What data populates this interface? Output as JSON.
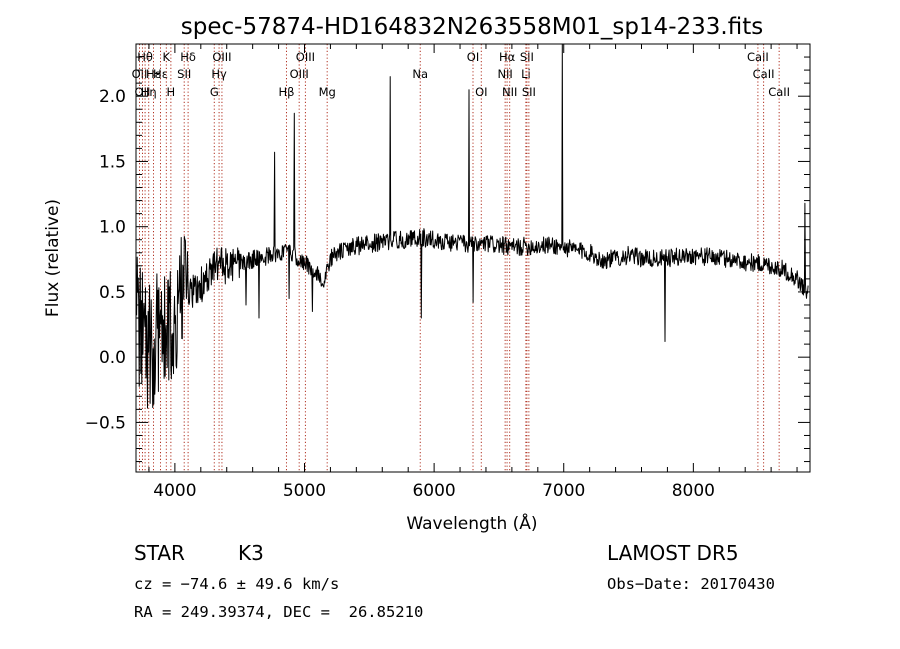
{
  "chart_data": {
    "type": "line",
    "title": "spec-57874-HD164832N263558M01_sp14-233.fits",
    "xlabel": "Wavelength (Å)",
    "ylabel": "Flux (relative)",
    "xlim": [
      3700,
      8900
    ],
    "ylim": [
      -0.88,
      2.4
    ],
    "x_ticks": [
      4000,
      5000,
      6000,
      7000,
      8000
    ],
    "x_tick_labels": [
      "4000",
      "5000",
      "6000",
      "7000",
      "8000"
    ],
    "y_ticks": [
      -0.5,
      0.0,
      0.5,
      1.0,
      1.5,
      2.0
    ],
    "y_tick_labels": [
      "−0.5",
      "0.0",
      "0.5",
      "1.0",
      "1.5",
      "2.0"
    ],
    "grid": false,
    "series_color": "#000000",
    "line_marker_color": "#b03020",
    "spectrum_profile": [
      [
        3700,
        0.35
      ],
      [
        3740,
        0.2
      ],
      [
        3780,
        0.05
      ],
      [
        3820,
        0.1
      ],
      [
        3860,
        0.15
      ],
      [
        3900,
        0.25
      ],
      [
        3940,
        0.15
      ],
      [
        3980,
        0.35
      ],
      [
        4030,
        0.45
      ],
      [
        4080,
        0.5
      ],
      [
        4150,
        0.5
      ],
      [
        4200,
        0.55
      ],
      [
        4260,
        0.6
      ],
      [
        4300,
        0.7
      ],
      [
        4360,
        0.72
      ],
      [
        4420,
        0.68
      ],
      [
        4500,
        0.72
      ],
      [
        4600,
        0.75
      ],
      [
        4700,
        0.77
      ],
      [
        4800,
        0.8
      ],
      [
        4900,
        0.8
      ],
      [
        5000,
        0.72
      ],
      [
        5100,
        0.65
      ],
      [
        5150,
        0.55
      ],
      [
        5200,
        0.76
      ],
      [
        5300,
        0.82
      ],
      [
        5400,
        0.85
      ],
      [
        5500,
        0.87
      ],
      [
        5600,
        0.88
      ],
      [
        5700,
        0.9
      ],
      [
        5800,
        0.9
      ],
      [
        5900,
        0.92
      ],
      [
        6000,
        0.9
      ],
      [
        6100,
        0.88
      ],
      [
        6200,
        0.88
      ],
      [
        6300,
        0.85
      ],
      [
        6400,
        0.87
      ],
      [
        6500,
        0.86
      ],
      [
        6600,
        0.84
      ],
      [
        6700,
        0.85
      ],
      [
        6800,
        0.85
      ],
      [
        6900,
        0.86
      ],
      [
        7000,
        0.84
      ],
      [
        7100,
        0.82
      ],
      [
        7200,
        0.8
      ],
      [
        7300,
        0.74
      ],
      [
        7400,
        0.76
      ],
      [
        7500,
        0.78
      ],
      [
        7600,
        0.76
      ],
      [
        7700,
        0.75
      ],
      [
        7800,
        0.76
      ],
      [
        7900,
        0.77
      ],
      [
        8000,
        0.78
      ],
      [
        8100,
        0.77
      ],
      [
        8200,
        0.76
      ],
      [
        8300,
        0.75
      ],
      [
        8400,
        0.73
      ],
      [
        8500,
        0.72
      ],
      [
        8600,
        0.7
      ],
      [
        8700,
        0.67
      ],
      [
        8800,
        0.6
      ],
      [
        8870,
        0.5
      ]
    ],
    "spectrum_spikes": [
      [
        4550,
        0.4
      ],
      [
        4650,
        0.3
      ],
      [
        4770,
        1.57
      ],
      [
        4880,
        0.45
      ],
      [
        4920,
        1.87
      ],
      [
        5060,
        0.35
      ],
      [
        5660,
        2.15
      ],
      [
        5900,
        0.3
      ],
      [
        6270,
        2.05
      ],
      [
        6300,
        0.42
      ],
      [
        6990,
        2.4
      ],
      [
        7780,
        0.12
      ],
      [
        8860,
        1.18
      ]
    ],
    "line_markers": [
      {
        "x": 3727,
        "label": "OII",
        "row": 1
      },
      {
        "x": 3750,
        "label": "OII",
        "row": 2
      },
      {
        "x": 3770,
        "label": "Hθ",
        "row": 0
      },
      {
        "x": 3798,
        "label": "Hη",
        "row": 2
      },
      {
        "x": 3835,
        "label": "Hε",
        "row": 1
      },
      {
        "x": 3889,
        "label": "Hε",
        "row": 1
      },
      {
        "x": 3934,
        "label": "K",
        "row": 0
      },
      {
        "x": 3969,
        "label": "H",
        "row": 2
      },
      {
        "x": 4072,
        "label": "SII",
        "row": 1
      },
      {
        "x": 4102,
        "label": "Hδ",
        "row": 0
      },
      {
        "x": 4304,
        "label": "G",
        "row": 2
      },
      {
        "x": 4341,
        "label": "Hγ",
        "row": 1
      },
      {
        "x": 4363,
        "label": "OIII",
        "row": 0
      },
      {
        "x": 4861,
        "label": "Hβ",
        "row": 2
      },
      {
        "x": 4959,
        "label": "OIII",
        "row": 1
      },
      {
        "x": 5007,
        "label": "OIII",
        "row": 0
      },
      {
        "x": 5175,
        "label": "Mg",
        "row": 2
      },
      {
        "x": 5893,
        "label": "Na",
        "row": 1
      },
      {
        "x": 6300,
        "label": "OI",
        "row": 0
      },
      {
        "x": 6364,
        "label": "OI",
        "row": 2
      },
      {
        "x": 6548,
        "label": "NII",
        "row": 1
      },
      {
        "x": 6563,
        "label": "Hα",
        "row": 0
      },
      {
        "x": 6583,
        "label": "NII",
        "row": 2
      },
      {
        "x": 6708,
        "label": "Li",
        "row": 1
      },
      {
        "x": 6716,
        "label": "SII",
        "row": 0
      },
      {
        "x": 6731,
        "label": "SII",
        "row": 2
      },
      {
        "x": 8498,
        "label": "CaII",
        "row": 0
      },
      {
        "x": 8542,
        "label": "CaII",
        "row": 1
      },
      {
        "x": 8662,
        "label": "CaII",
        "row": 2
      }
    ]
  },
  "info": {
    "object_class": "STAR",
    "subclass": "K3",
    "survey": "LAMOST DR5",
    "cz_text": "cz = −74.6 ± 49.6 km/s",
    "obs_date_text": "Obs−Date: 20170430",
    "coords_text": "RA = 249.39374, DEC =  26.85210"
  }
}
